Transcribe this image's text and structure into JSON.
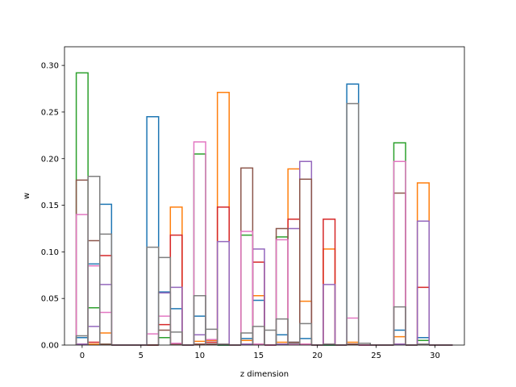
{
  "chart_data": {
    "type": "bar",
    "style": "step histogram (unfilled outlines), overlapping series",
    "title": "",
    "xlabel": "z dimension",
    "ylabel": "w",
    "xlim": [
      -1.5,
      32.5
    ],
    "ylim": [
      0,
      0.32
    ],
    "xticks": [
      0,
      5,
      10,
      15,
      20,
      25,
      30
    ],
    "yticks": [
      0.0,
      0.05,
      0.1,
      0.15,
      0.2,
      0.25,
      0.3
    ],
    "xtick_labels": [
      "0",
      "5",
      "10",
      "15",
      "20",
      "25",
      "30"
    ],
    "ytick_labels": [
      "0.00",
      "0.05",
      "0.10",
      "0.15",
      "0.20",
      "0.25",
      "0.30"
    ],
    "grid": false,
    "legend": "none",
    "bin_width": 1,
    "categories": [
      0,
      1,
      2,
      3,
      4,
      5,
      6,
      7,
      8,
      9,
      10,
      11,
      12,
      13,
      14,
      15,
      16,
      17,
      18,
      19,
      20,
      21,
      22,
      23,
      24,
      25,
      26,
      27,
      28,
      29,
      30,
      31
    ],
    "series": [
      {
        "color": "#1f77b4",
        "values": [
          0.008,
          0.087,
          0.151,
          0,
          0,
          0,
          0.245,
          0.057,
          0.039,
          0,
          0.031,
          0.003,
          0,
          0,
          0.007,
          0.048,
          0,
          0.011,
          0.003,
          0.007,
          0,
          0,
          0,
          0.28,
          0,
          0,
          0,
          0.016,
          0,
          0.008,
          0,
          0
        ]
      },
      {
        "color": "#ff7f0e",
        "values": [
          0.001,
          0.001,
          0.013,
          0,
          0,
          0,
          0,
          0.008,
          0.148,
          0,
          0.004,
          0.005,
          0.271,
          0,
          0.005,
          0.053,
          0,
          0.003,
          0.189,
          0.047,
          0,
          0.103,
          0,
          0.003,
          0,
          0,
          0,
          0.009,
          0,
          0.174,
          0,
          0
        ]
      },
      {
        "color": "#2ca02c",
        "values": [
          0.292,
          0.04,
          0.001,
          0,
          0,
          0,
          0,
          0.008,
          0.002,
          0,
          0.205,
          0.001,
          0,
          0,
          0.118,
          0.001,
          0,
          0.116,
          0.001,
          0.001,
          0,
          0,
          0,
          0.001,
          0,
          0,
          0,
          0.217,
          0,
          0.005,
          0,
          0
        ]
      },
      {
        "color": "#d62728",
        "values": [
          0.001,
          0.003,
          0.096,
          0,
          0,
          0,
          0,
          0.022,
          0.118,
          0,
          0.001,
          0.003,
          0.148,
          0,
          0.001,
          0.089,
          0,
          0.001,
          0.135,
          0.001,
          0,
          0.135,
          0,
          0.001,
          0,
          0,
          0,
          0.001,
          0,
          0.062,
          0,
          0
        ]
      },
      {
        "color": "#9467bd",
        "values": [
          0.001,
          0.02,
          0.065,
          0,
          0,
          0,
          0,
          0.056,
          0.062,
          0,
          0.011,
          0.001,
          0.111,
          0,
          0.001,
          0.103,
          0,
          0.001,
          0.125,
          0.197,
          0,
          0.065,
          0,
          0.001,
          0,
          0,
          0,
          0.001,
          0,
          0.133,
          0,
          0
        ]
      },
      {
        "color": "#8c564b",
        "values": [
          0.177,
          0.112,
          0.001,
          0,
          0,
          0,
          0,
          0.016,
          0.001,
          0,
          0.001,
          0.001,
          0.001,
          0,
          0.19,
          0.001,
          0,
          0.125,
          0.003,
          0.178,
          0,
          0.001,
          0,
          0.001,
          0,
          0,
          0,
          0.163,
          0,
          0.001,
          0,
          0
        ]
      },
      {
        "color": "#e377c2",
        "values": [
          0.14,
          0.085,
          0.035,
          0,
          0,
          0,
          0.012,
          0.031,
          0.002,
          0,
          0.218,
          0.006,
          0.001,
          0,
          0.122,
          0.001,
          0,
          0.113,
          0.001,
          0.001,
          0,
          0.001,
          0,
          0.029,
          0,
          0,
          0,
          0.197,
          0,
          0.001,
          0,
          0
        ]
      },
      {
        "color": "#7f7f7f",
        "values": [
          0.01,
          0.181,
          0.119,
          0,
          0,
          0,
          0.105,
          0.094,
          0.014,
          0,
          0.053,
          0.017,
          0.001,
          0,
          0.013,
          0.02,
          0.016,
          0.028,
          0.002,
          0.023,
          0,
          0.001,
          0,
          0.259,
          0.002,
          0,
          0,
          0.041,
          0,
          0.001,
          0,
          0
        ]
      }
    ]
  }
}
